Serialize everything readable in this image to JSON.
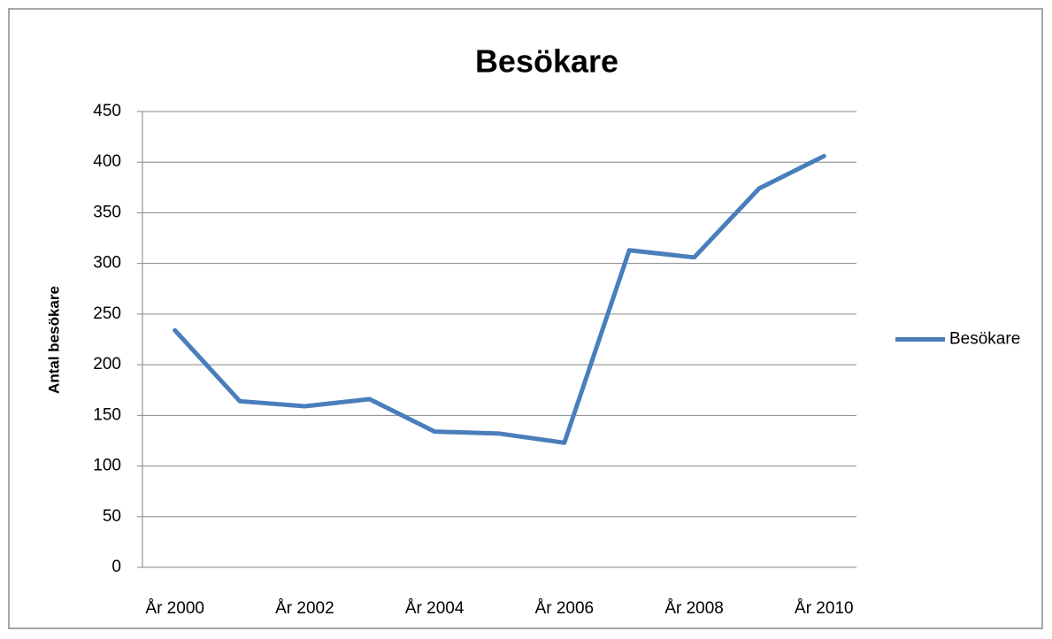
{
  "chart_data": {
    "type": "line",
    "title": "Besökare",
    "ylabel": "Antal besökare",
    "categories": [
      "År 2000",
      null,
      "År 2002",
      null,
      "År 2004",
      null,
      "År 2006",
      null,
      "År 2008",
      null,
      "År 2010"
    ],
    "series": [
      {
        "name": "Besökare",
        "color": "#4a7ebb",
        "values": [
          234,
          164,
          159,
          166,
          134,
          132,
          123,
          313,
          306,
          374,
          406
        ]
      }
    ],
    "ylim": [
      0,
      450
    ],
    "yticks": [
      0,
      50,
      100,
      150,
      200,
      250,
      300,
      350,
      400,
      450
    ],
    "grid": true,
    "legend": "right"
  }
}
